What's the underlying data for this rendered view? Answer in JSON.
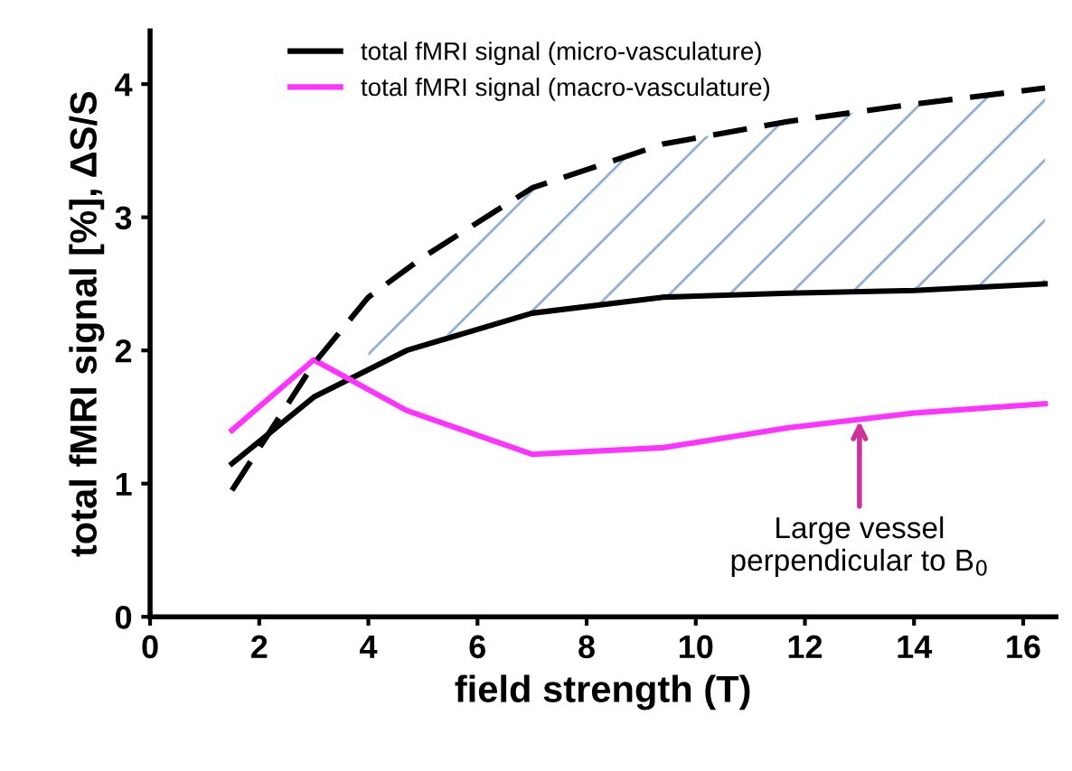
{
  "chart_data": {
    "type": "line",
    "xlabel": "field strength (T)",
    "ylabel": "total fMRI signal [%], ΔS/S",
    "xlim": [
      0,
      16.6
    ],
    "xticks": [
      0,
      2,
      4,
      6,
      8,
      10,
      12,
      14,
      16
    ],
    "ylim": [
      0,
      4.4
    ],
    "yticks": [
      0,
      1,
      2,
      3,
      4
    ],
    "grid": false,
    "legend": "top",
    "marker": "none",
    "series": [
      {
        "name": "total fMRI signal (micro-vasculature)",
        "color": "#000000",
        "x": [
          1.5,
          3,
          4.7,
          7,
          9.4,
          11.7,
          14,
          16.4
        ],
        "values": [
          1.15,
          1.65,
          2.0,
          2.28,
          2.4,
          2.43,
          2.45,
          2.5
        ]
      },
      {
        "name": "total fMRI signal (macro-vasculature)",
        "color": "#ff33ff",
        "x": [
          1.5,
          3,
          4.7,
          7,
          9.4,
          11.7,
          14,
          16.4
        ],
        "values": [
          1.4,
          1.93,
          1.55,
          1.22,
          1.27,
          1.42,
          1.53,
          1.6
        ]
      },
      {
        "color": "#000000",
        "line_style": "dashed",
        "x": [
          1.5,
          3,
          4,
          5,
          7,
          9.4,
          11.7,
          14,
          16.4
        ],
        "values": [
          0.95,
          1.9,
          2.4,
          2.7,
          3.22,
          3.55,
          3.72,
          3.85,
          3.97
        ],
        "lower": [
          null,
          null,
          1.87,
          2.07,
          2.28,
          2.4,
          2.43,
          2.45,
          2.5
        ],
        "upper": [
          null,
          null,
          2.4,
          2.7,
          3.22,
          3.55,
          3.72,
          3.85,
          3.97
        ]
      }
    ],
    "annotations": [
      {
        "text": "Large vessel\nperpendicular to B$_{0}$",
        "x": 13,
        "y": 1.47
      }
    ]
  }
}
